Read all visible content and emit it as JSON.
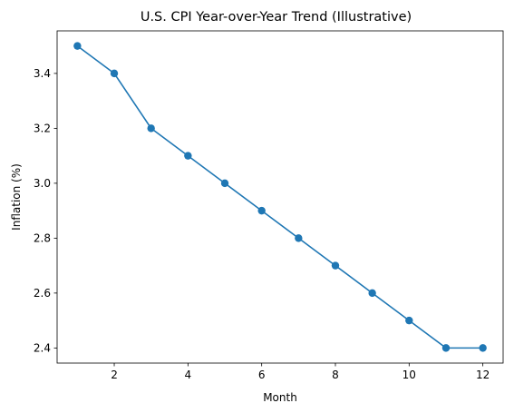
{
  "chart_data": {
    "type": "line",
    "title": "U.S. CPI Year-over-Year Trend (Illustrative)",
    "xlabel": "Month",
    "ylabel": "Inflation (%)",
    "x": [
      1,
      2,
      3,
      4,
      5,
      6,
      7,
      8,
      9,
      10,
      11,
      12
    ],
    "series": [
      {
        "values": [
          3.5,
          3.4,
          3.2,
          3.1,
          3.0,
          2.9,
          2.8,
          2.7,
          2.6,
          2.5,
          2.4,
          2.4
        ],
        "color": "#1f77b4"
      }
    ],
    "xlim": [
      0.45,
      12.55
    ],
    "ylim": [
      2.345,
      3.555
    ],
    "xticks": [
      2,
      4,
      6,
      8,
      10,
      12
    ],
    "xtick_labels": [
      "2",
      "4",
      "6",
      "8",
      "10",
      "12"
    ],
    "yticks": [
      2.4,
      2.6,
      2.8,
      3.0,
      3.2,
      3.4
    ],
    "ytick_labels": [
      "2.4",
      "2.6",
      "2.8",
      "3.0",
      "3.2",
      "3.4"
    ],
    "grid": false,
    "marker": "circle"
  }
}
